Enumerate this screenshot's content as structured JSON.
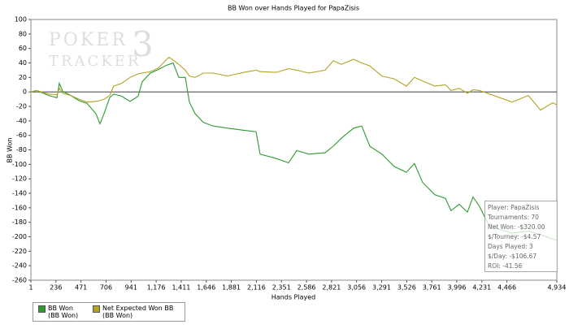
{
  "chart_data": {
    "type": "line",
    "title": "BB Won over Hands Played for PapaZisis",
    "x_label": "Hands Played",
    "y_label": "BB Won",
    "watermark": [
      "POKER",
      "TRACKER",
      "3"
    ],
    "x": [
      1,
      54,
      169,
      245,
      268,
      299,
      375,
      452,
      528,
      611,
      649,
      687,
      740,
      778,
      854,
      931,
      1007,
      1045,
      1122,
      1198,
      1274,
      1297,
      1335,
      1389,
      1450,
      1488,
      1541,
      1618,
      1709,
      1846,
      1999,
      2113,
      2151,
      2304,
      2418,
      2494,
      2609,
      2761,
      2837,
      2913,
      3028,
      3104,
      3180,
      3294,
      3409,
      3523,
      3599,
      3675,
      3790,
      3889,
      3942,
      4018,
      4095,
      4148,
      4209,
      4285,
      4400,
      4514,
      4667,
      4781,
      4896,
      4934
    ],
    "series": [
      {
        "name": "BB Won (BB Won)",
        "color": "#2f9a2f",
        "values": [
          0,
          2,
          -5,
          -8,
          12,
          1,
          -5,
          -12,
          -16,
          -30,
          -44,
          -30,
          -8,
          -3,
          -6,
          -13,
          -6,
          14,
          26,
          31,
          37,
          38,
          40,
          20,
          20,
          -14,
          -30,
          -42,
          -47,
          -50,
          -53,
          -55,
          -86,
          -92,
          -98,
          -81,
          -86,
          -84,
          -75,
          -64,
          -50,
          -47,
          -75,
          -86,
          -103,
          -111,
          -99,
          -125,
          -142,
          -147,
          -164,
          -155,
          -166,
          -145,
          -158,
          -181,
          -190,
          -195,
          -192,
          -197,
          -203,
          -205
        ]
      },
      {
        "name": "Net Expected Won BB (BB Won)",
        "color": "#b3a323",
        "values": [
          0,
          2,
          -3,
          -4,
          5,
          -2,
          -5,
          -10,
          -14,
          -13,
          -12,
          -10,
          -5,
          8,
          12,
          20,
          25,
          26,
          28,
          33,
          45,
          48,
          44,
          38,
          30,
          22,
          20,
          26,
          26,
          22,
          27,
          30,
          28,
          27,
          32,
          30,
          26,
          30,
          43,
          38,
          45,
          40,
          36,
          22,
          18,
          8,
          20,
          15,
          8,
          10,
          2,
          5,
          -2,
          3,
          2,
          -2,
          -8,
          -14,
          -5,
          -25,
          -15,
          -18
        ]
      }
    ],
    "xlim": [
      1,
      4934
    ],
    "ylim": [
      -260,
      100
    ],
    "xticks": [
      1,
      236,
      471,
      706,
      941,
      {
        "value": 1176,
        "label": "1,176"
      },
      {
        "value": 1411,
        "label": "1,411"
      },
      {
        "value": 1646,
        "label": "1,646"
      },
      {
        "value": 1881,
        "label": "1,881"
      },
      {
        "value": 2116,
        "label": "2,116"
      },
      {
        "value": 2351,
        "label": "2,351"
      },
      {
        "value": 2586,
        "label": "2,586"
      },
      {
        "value": 2821,
        "label": "2,821"
      },
      {
        "value": 3056,
        "label": "3,056"
      },
      {
        "value": 3291,
        "label": "3,291"
      },
      {
        "value": 3526,
        "label": "3,526"
      },
      {
        "value": 3761,
        "label": "3,761"
      },
      {
        "value": 3996,
        "label": "3,996"
      },
      {
        "value": 4231,
        "label": "4,231"
      },
      {
        "value": 4466,
        "label": "4,466"
      },
      {
        "value": 4934,
        "label": "4,934"
      }
    ],
    "yticks": [
      -260,
      -240,
      -220,
      -200,
      -180,
      -160,
      -140,
      -120,
      -100,
      -80,
      -60,
      -40,
      -20,
      0,
      20,
      40,
      60,
      80,
      100
    ],
    "stats": [
      "Player: PapaZisis",
      "Tournaments: 70",
      "Net Won: -$320.00",
      "$/Tourney: -$4.57",
      "Days Played: 3",
      "$/Day: -$106.67",
      "ROI: -41.56"
    ]
  }
}
